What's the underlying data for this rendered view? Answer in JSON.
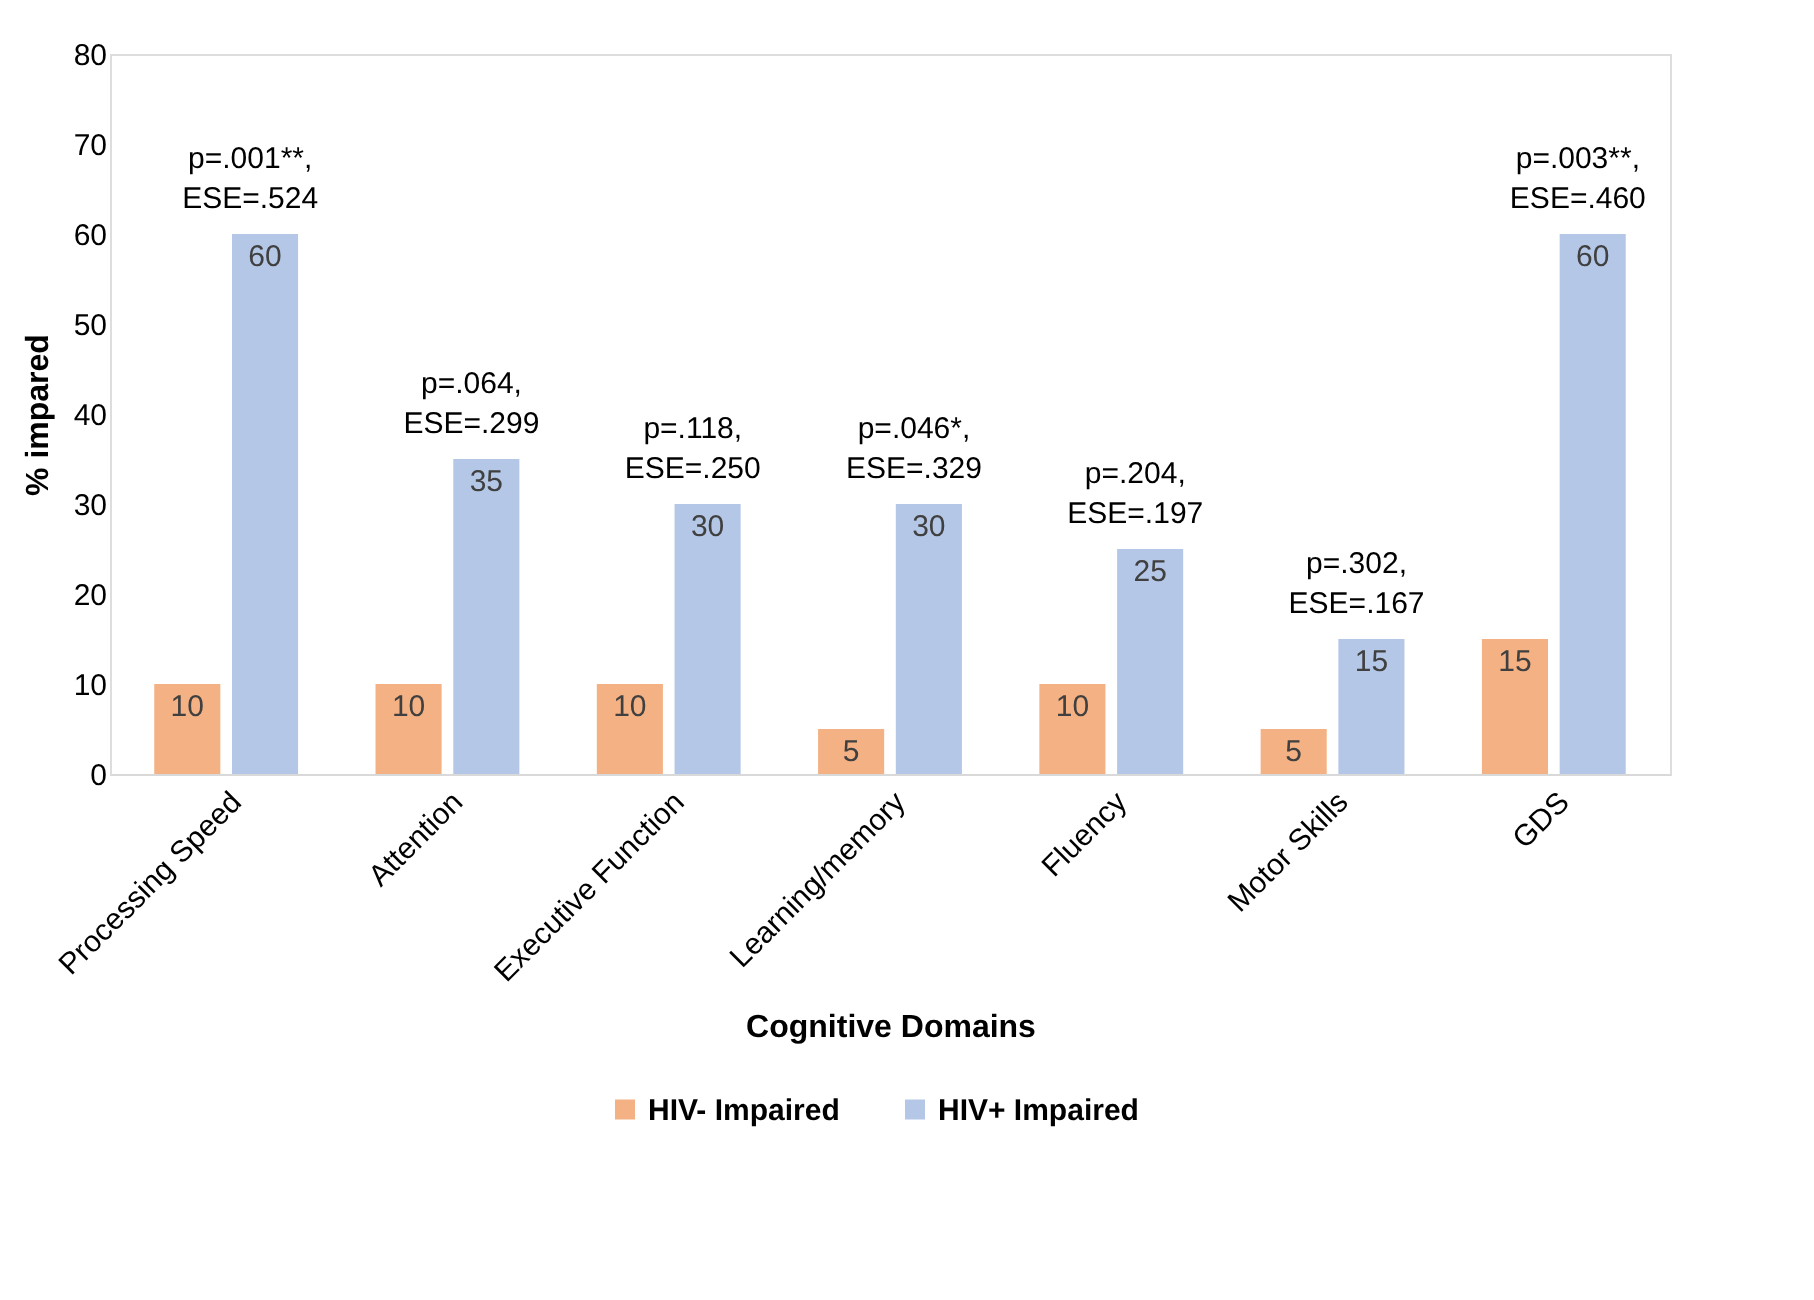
{
  "chart_data": {
    "type": "bar",
    "xlabel": "Cognitive Domains",
    "ylabel": "% impared",
    "categories": [
      "Processing Speed",
      "Attention",
      "Executive Function",
      "Learning/memory",
      "Fluency",
      "Motor Skills",
      "GDS"
    ],
    "series": [
      {
        "name": "HIV- Impaired",
        "color": "#f4b183",
        "values": [
          10,
          10,
          10,
          5,
          10,
          5,
          15
        ]
      },
      {
        "name": "HIV+ Impaired",
        "color": "#b4c7e7",
        "values": [
          60,
          35,
          30,
          30,
          25,
          15,
          60
        ]
      }
    ],
    "ylim": [
      0,
      80
    ],
    "yticks": [
      0,
      10,
      20,
      30,
      40,
      50,
      60,
      70,
      80
    ],
    "grid": false,
    "legend": "bottom",
    "data_labels": true,
    "annotations": [
      {
        "text": "p=.001**, ESE=.524",
        "x": "Processing Speed",
        "y": 60
      },
      {
        "text": "p=.064, ESE=.299",
        "x": "Attention",
        "y": 35
      },
      {
        "text": "p=.118, ESE=.250",
        "x": "Executive Function",
        "y": 30
      },
      {
        "text": "p=.046*, ESE=.329",
        "x": "Learning/memory",
        "y": 30
      },
      {
        "text": "p=.204, ESE=.197",
        "x": "Fluency",
        "y": 25
      },
      {
        "text": "p=.302, ESE=.167",
        "x": "Motor Skills",
        "y": 15
      },
      {
        "text": "p=.003**, ESE=.460",
        "x": "GDS",
        "y": 60
      }
    ]
  }
}
